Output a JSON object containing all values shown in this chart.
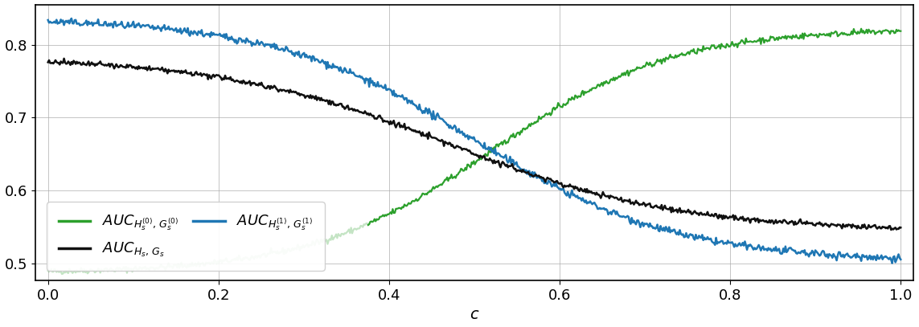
{
  "xlabel": "c",
  "xlim": [
    -0.015,
    1.015
  ],
  "ylim": [
    0.477,
    0.855
  ],
  "yticks": [
    0.5,
    0.6,
    0.7,
    0.8
  ],
  "xticks": [
    0.0,
    0.2,
    0.4,
    0.6,
    0.8,
    1.0
  ],
  "green_color": "#2ca02c",
  "blue_color": "#1f77b4",
  "black_color": "#111111",
  "legend_labels": [
    "$AUC_{H_s^{(0)},\\, G_s^{(0)}}$",
    "$AUC_{H_s^{(1)},\\, G_s^{(1)}}$",
    "$AUC_{H_s,\\, G_s}$"
  ],
  "figsize": [
    11.43,
    4.07
  ],
  "dpi": 100,
  "green_light_thresh": 0.38,
  "noise_seed": 42
}
